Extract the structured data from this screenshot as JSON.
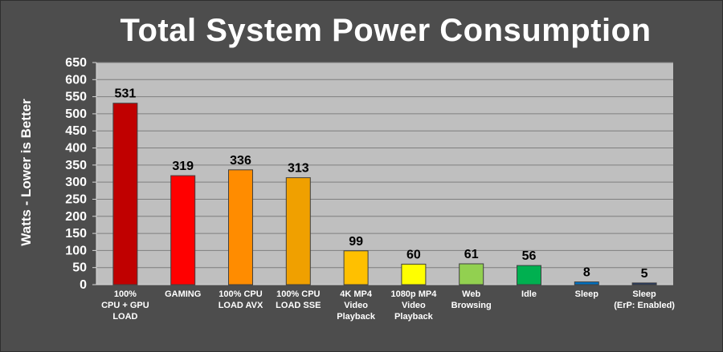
{
  "chart_data": {
    "type": "bar",
    "title": "Total System Power Consumption",
    "xlabel": "",
    "ylabel": "Watts - Lower is Better",
    "ylim": [
      0,
      650
    ],
    "yticks": [
      0,
      50,
      100,
      150,
      200,
      250,
      300,
      350,
      400,
      450,
      500,
      550,
      600,
      650
    ],
    "grid": true,
    "categories": [
      [
        "100%",
        "CPU + GPU",
        "LOAD"
      ],
      [
        "GAMING"
      ],
      [
        "100% CPU",
        "LOAD AVX"
      ],
      [
        "100% CPU",
        "LOAD SSE"
      ],
      [
        "4K MP4",
        "Video",
        "Playback"
      ],
      [
        "1080p MP4",
        "Video",
        "Playback"
      ],
      [
        "Web",
        "Browsing"
      ],
      [
        "Idle"
      ],
      [
        "Sleep"
      ],
      [
        "Sleep",
        "(ErP: Enabled)"
      ]
    ],
    "values": [
      531,
      319,
      336,
      313,
      99,
      60,
      61,
      56,
      8,
      5
    ],
    "colors": [
      "#c00000",
      "#ff0000",
      "#ff8c00",
      "#f0a000",
      "#ffc000",
      "#ffff00",
      "#92d050",
      "#00b050",
      "#0070c0",
      "#203864"
    ],
    "background": "#4d4d4d",
    "plot_background": "#bfbfbf"
  }
}
